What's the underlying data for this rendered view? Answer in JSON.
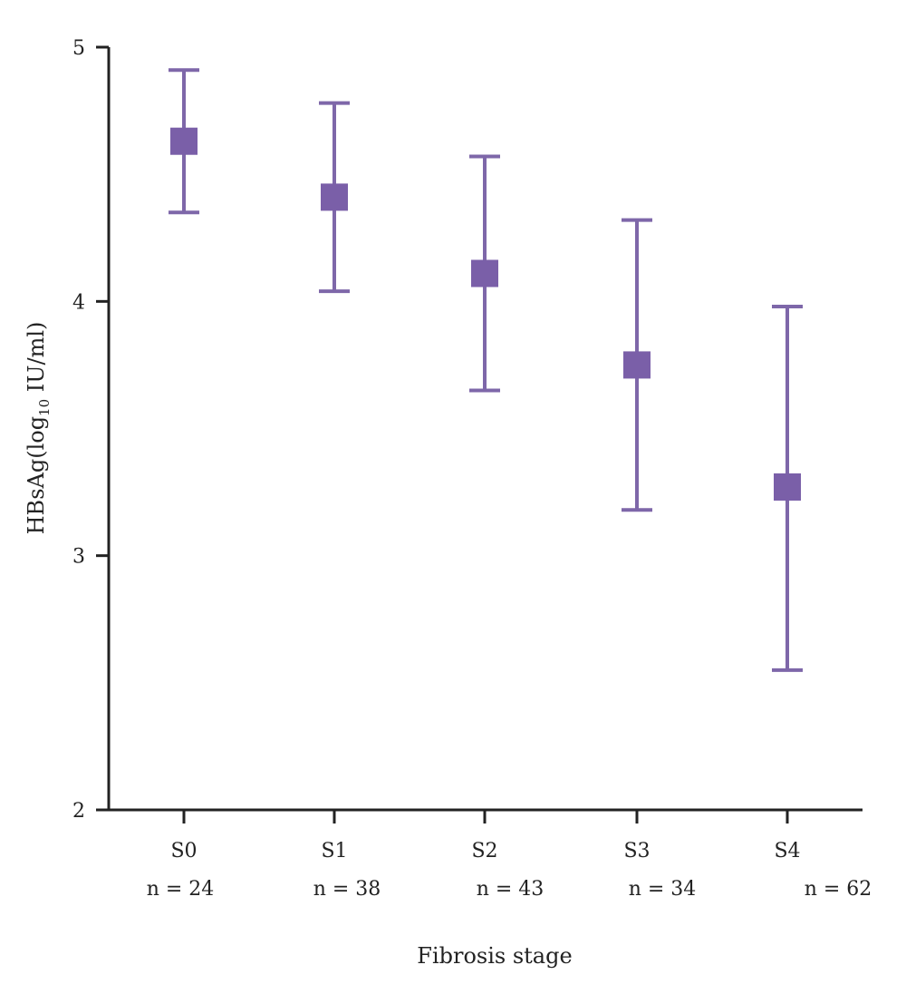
{
  "chart_data": {
    "type": "scatter",
    "xlabel": "Fibrosis stage",
    "ylabel_main": "HBsAg(log",
    "ylabel_sub": "10",
    "ylabel_end": " IU/ml)",
    "ylim": [
      2,
      5
    ],
    "yticks": [
      "2",
      "3",
      "4",
      "5"
    ],
    "grid": false,
    "legend": "none",
    "marker_color": "#7a5fa8",
    "error_color": "#7e67a9",
    "categories": [
      "S0",
      "S1",
      "S2",
      "S3",
      "S4"
    ],
    "n_labels": [
      "n = 24",
      "n = 38",
      "n = 43",
      "n = 34",
      "n = 62"
    ],
    "points": [
      {
        "category": "S0",
        "value": 4.63,
        "lower": 4.35,
        "upper": 4.91
      },
      {
        "category": "S1",
        "value": 4.41,
        "lower": 4.04,
        "upper": 4.78
      },
      {
        "category": "S2",
        "value": 4.11,
        "lower": 3.65,
        "upper": 4.57
      },
      {
        "category": "S3",
        "value": 3.75,
        "lower": 3.18,
        "upper": 4.32
      },
      {
        "category": "S4",
        "value": 3.27,
        "lower": 2.55,
        "upper": 3.98
      }
    ]
  }
}
